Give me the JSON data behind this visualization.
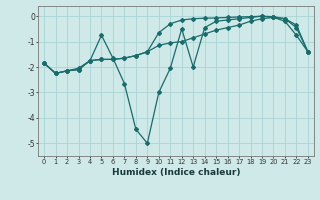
{
  "xlabel": "Humidex (Indice chaleur)",
  "background_color": "#cfe8e8",
  "grid_color": "#aad4d4",
  "line_color": "#1a6b6b",
  "xlim": [
    -0.5,
    23.5
  ],
  "ylim": [
    -5.5,
    0.4
  ],
  "yticks": [
    0,
    -1,
    -2,
    -3,
    -4,
    -5
  ],
  "xticks": [
    0,
    1,
    2,
    3,
    4,
    5,
    6,
    7,
    8,
    9,
    10,
    11,
    12,
    13,
    14,
    15,
    16,
    17,
    18,
    19,
    20,
    21,
    22,
    23
  ],
  "line1_x": [
    0,
    1,
    2,
    3,
    4,
    5,
    6,
    7,
    8,
    9,
    10,
    11,
    12,
    13,
    14,
    15,
    16,
    17,
    18,
    19,
    20,
    21,
    22,
    23
  ],
  "line1_y": [
    -1.85,
    -2.25,
    -2.15,
    -2.1,
    -1.75,
    -1.7,
    -1.7,
    -1.65,
    -1.55,
    -1.4,
    -1.15,
    -1.05,
    -1.0,
    -0.85,
    -0.7,
    -0.55,
    -0.45,
    -0.35,
    -0.2,
    -0.1,
    -0.05,
    -0.1,
    -0.35,
    -1.4
  ],
  "line2_x": [
    0,
    1,
    2,
    3,
    4,
    5,
    6,
    7,
    8,
    9,
    10,
    11,
    12,
    13,
    14,
    15,
    16,
    17,
    18,
    19,
    20,
    21,
    22,
    23
  ],
  "line2_y": [
    -1.85,
    -2.25,
    -2.15,
    -2.05,
    -1.75,
    -0.75,
    -1.65,
    -2.65,
    -4.45,
    -5.0,
    -3.0,
    -2.05,
    -0.5,
    -2.0,
    -0.45,
    -0.2,
    -0.15,
    -0.1,
    -0.05,
    0.0,
    -0.05,
    -0.2,
    -0.75,
    -1.4
  ],
  "line3_x": [
    0,
    1,
    2,
    3,
    4,
    5,
    6,
    7,
    8,
    9,
    10,
    11,
    12,
    13,
    14,
    15,
    16,
    17,
    18,
    19,
    20,
    21,
    22,
    23
  ],
  "line3_y": [
    -1.85,
    -2.25,
    -2.15,
    -2.1,
    -1.75,
    -1.7,
    -1.7,
    -1.65,
    -1.55,
    -1.4,
    -0.65,
    -0.3,
    -0.15,
    -0.1,
    -0.08,
    -0.07,
    -0.05,
    -0.03,
    -0.02,
    0.0,
    -0.02,
    -0.1,
    -0.45,
    -1.4
  ]
}
